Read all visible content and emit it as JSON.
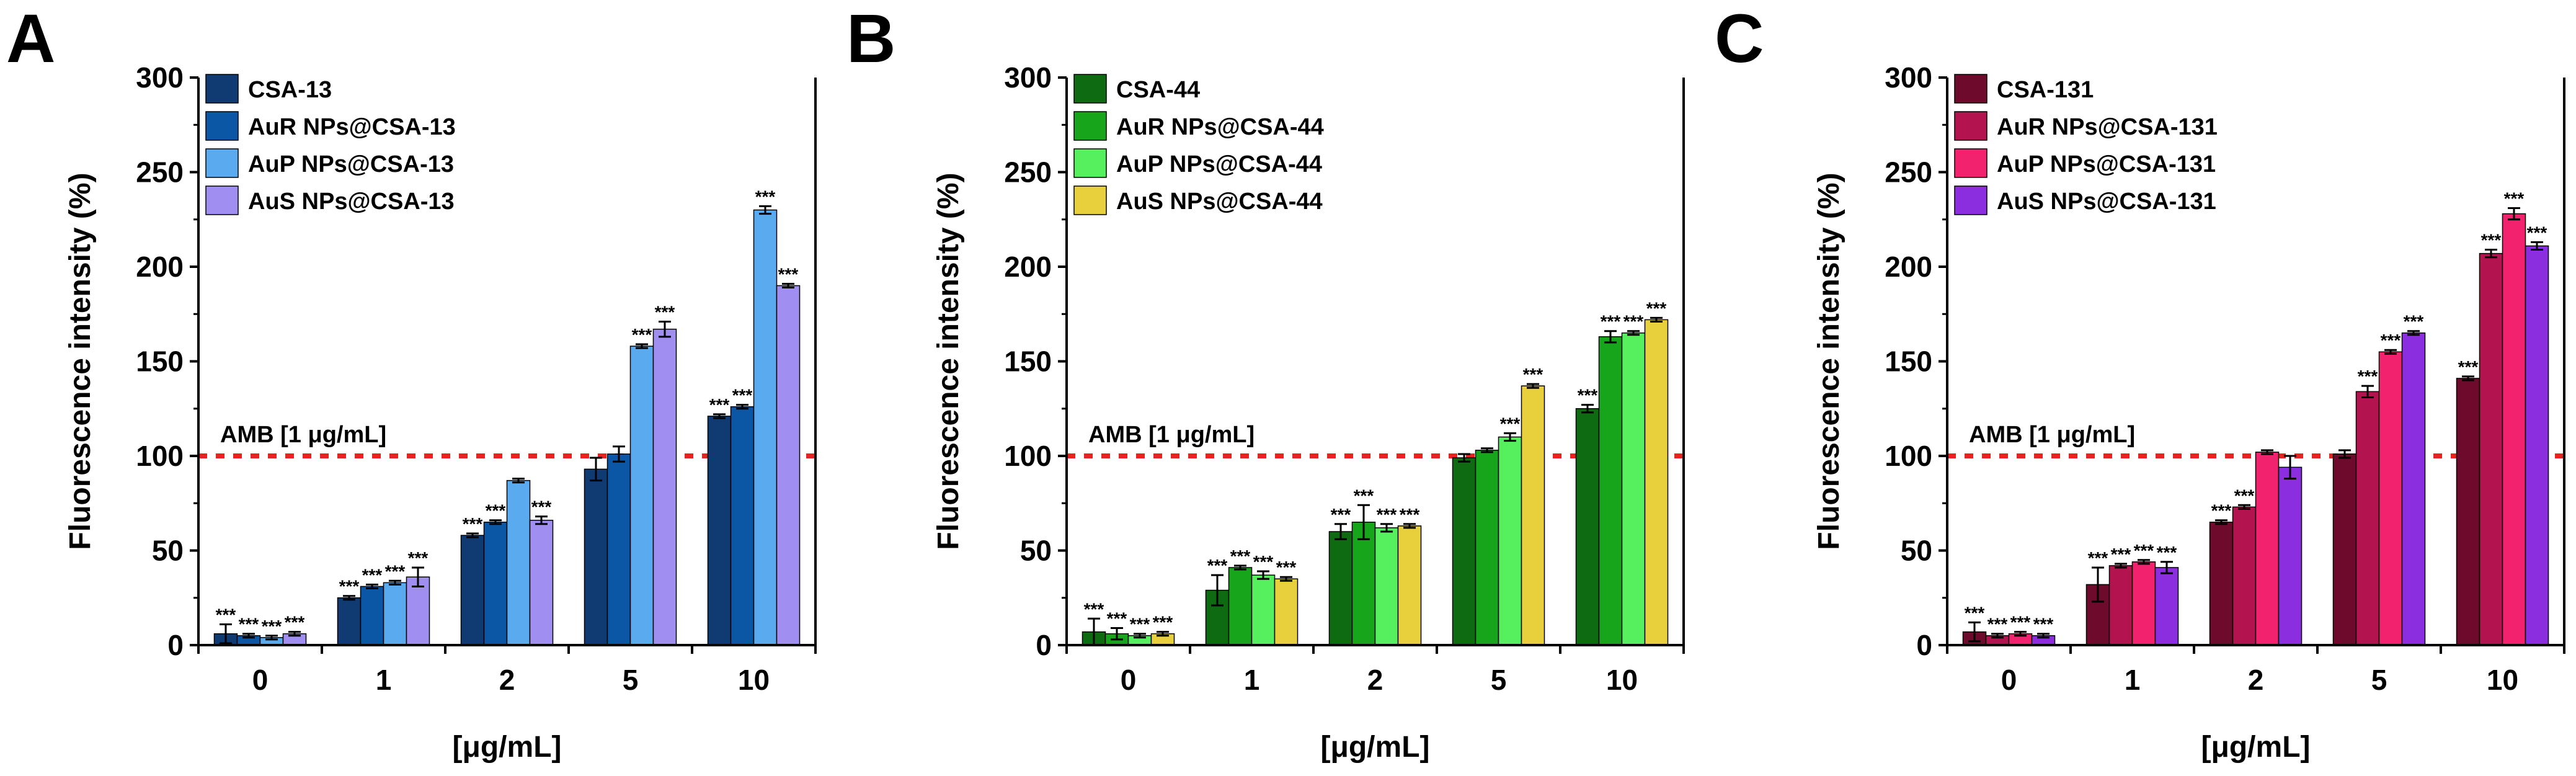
{
  "chart_data": [
    {
      "type": "bar",
      "panel_label": "A",
      "categories": [
        "0",
        "1",
        "2",
        "5",
        "10"
      ],
      "xlabel": "[μg/mL]",
      "ylabel": "Fluorescence intensity (%)",
      "ylim": [
        0,
        300
      ],
      "yticks": [
        "0",
        "50",
        "100",
        "150",
        "200",
        "250",
        "300"
      ],
      "legend_position": "top-left",
      "reference_line": {
        "value": 100,
        "label": "AMB [1 μg/mL]",
        "color": "#e8231f"
      },
      "series": [
        {
          "name": "CSA-13",
          "color": "#0f3a72",
          "values": [
            6,
            25,
            58,
            93,
            121
          ],
          "errors": [
            5,
            1,
            1,
            6,
            1
          ],
          "significance": [
            "***",
            "***",
            "***",
            "",
            "***"
          ]
        },
        {
          "name": "AuR NPs@CSA-13",
          "color": "#0b57a6",
          "values": [
            5,
            31,
            65,
            101,
            126
          ],
          "errors": [
            1,
            1,
            1,
            4,
            1
          ],
          "significance": [
            "***",
            "***",
            "***",
            "",
            "***"
          ]
        },
        {
          "name": "AuP NPs@CSA-13",
          "color": "#5aaaf0",
          "values": [
            4,
            33,
            87,
            158,
            230
          ],
          "errors": [
            1,
            1,
            1,
            1,
            2
          ],
          "significance": [
            "***",
            "***",
            "",
            "***",
            "***"
          ]
        },
        {
          "name": "AuS NPs@CSA-13",
          "color": "#a08ff0",
          "values": [
            6,
            36,
            66,
            167,
            190
          ],
          "errors": [
            1,
            5,
            2,
            4,
            1
          ],
          "significance": [
            "***",
            "***",
            "***",
            "***",
            "***"
          ]
        }
      ]
    },
    {
      "type": "bar",
      "panel_label": "B",
      "categories": [
        "0",
        "1",
        "2",
        "5",
        "10"
      ],
      "xlabel": "[μg/mL]",
      "ylabel": "Fluorescence intensity (%)",
      "ylim": [
        0,
        300
      ],
      "yticks": [
        "0",
        "50",
        "100",
        "150",
        "200",
        "250",
        "300"
      ],
      "legend_position": "top-left",
      "reference_line": {
        "value": 100,
        "label": "AMB [1 μg/mL]",
        "color": "#e8231f"
      },
      "series": [
        {
          "name": "CSA-44",
          "color": "#0f6b12",
          "values": [
            7,
            29,
            60,
            99,
            125
          ],
          "errors": [
            7,
            8,
            4,
            2,
            2
          ],
          "significance": [
            "***",
            "***",
            "***",
            "",
            "***"
          ]
        },
        {
          "name": "AuR NPs@CSA-44",
          "color": "#17a51c",
          "values": [
            6,
            41,
            65,
            103,
            163
          ],
          "errors": [
            3,
            1,
            9,
            1,
            3
          ],
          "significance": [
            "***",
            "***",
            "***",
            "",
            "***"
          ]
        },
        {
          "name": "AuP NPs@CSA-44",
          "color": "#56f05f",
          "values": [
            5,
            37,
            62,
            110,
            165
          ],
          "errors": [
            1,
            2,
            2,
            2,
            1
          ],
          "significance": [
            "***",
            "***",
            "***",
            "***",
            "***"
          ]
        },
        {
          "name": "AuS NPs@CSA-44",
          "color": "#e8d03c",
          "values": [
            6,
            35,
            63,
            137,
            172
          ],
          "errors": [
            1,
            1,
            1,
            1,
            1
          ],
          "significance": [
            "***",
            "***",
            "***",
            "***",
            "***"
          ]
        }
      ]
    },
    {
      "type": "bar",
      "panel_label": "C",
      "categories": [
        "0",
        "1",
        "2",
        "5",
        "10"
      ],
      "xlabel": "[μg/mL]",
      "ylabel": "Fluorescence intensity (%)",
      "ylim": [
        0,
        300
      ],
      "yticks": [
        "0",
        "50",
        "100",
        "150",
        "200",
        "250",
        "300"
      ],
      "legend_position": "top-left",
      "reference_line": {
        "value": 100,
        "label": "AMB [1 μg/mL]",
        "color": "#e8231f"
      },
      "series": [
        {
          "name": "CSA-131",
          "color": "#6e0a2c",
          "values": [
            7,
            32,
            65,
            101,
            141
          ],
          "errors": [
            5,
            9,
            1,
            2,
            1
          ],
          "significance": [
            "***",
            "***",
            "***",
            "",
            "***"
          ]
        },
        {
          "name": "AuR NPs@CSA-131",
          "color": "#b3134f",
          "values": [
            5,
            42,
            73,
            134,
            207
          ],
          "errors": [
            1,
            1,
            1,
            3,
            2
          ],
          "significance": [
            "***",
            "***",
            "***",
            "***",
            "***"
          ]
        },
        {
          "name": "AuP NPs@CSA-131",
          "color": "#f2226e",
          "values": [
            6,
            44,
            102,
            155,
            228
          ],
          "errors": [
            1,
            1,
            1,
            1,
            3
          ],
          "significance": [
            "***",
            "***",
            "",
            "***",
            "***"
          ]
        },
        {
          "name": "AuS NPs@CSA-131",
          "color": "#8a2ee0",
          "values": [
            5,
            41,
            94,
            165,
            211
          ],
          "errors": [
            1,
            3,
            6,
            1,
            2
          ],
          "significance": [
            "***",
            "***",
            "",
            "***",
            "***"
          ]
        }
      ]
    }
  ]
}
